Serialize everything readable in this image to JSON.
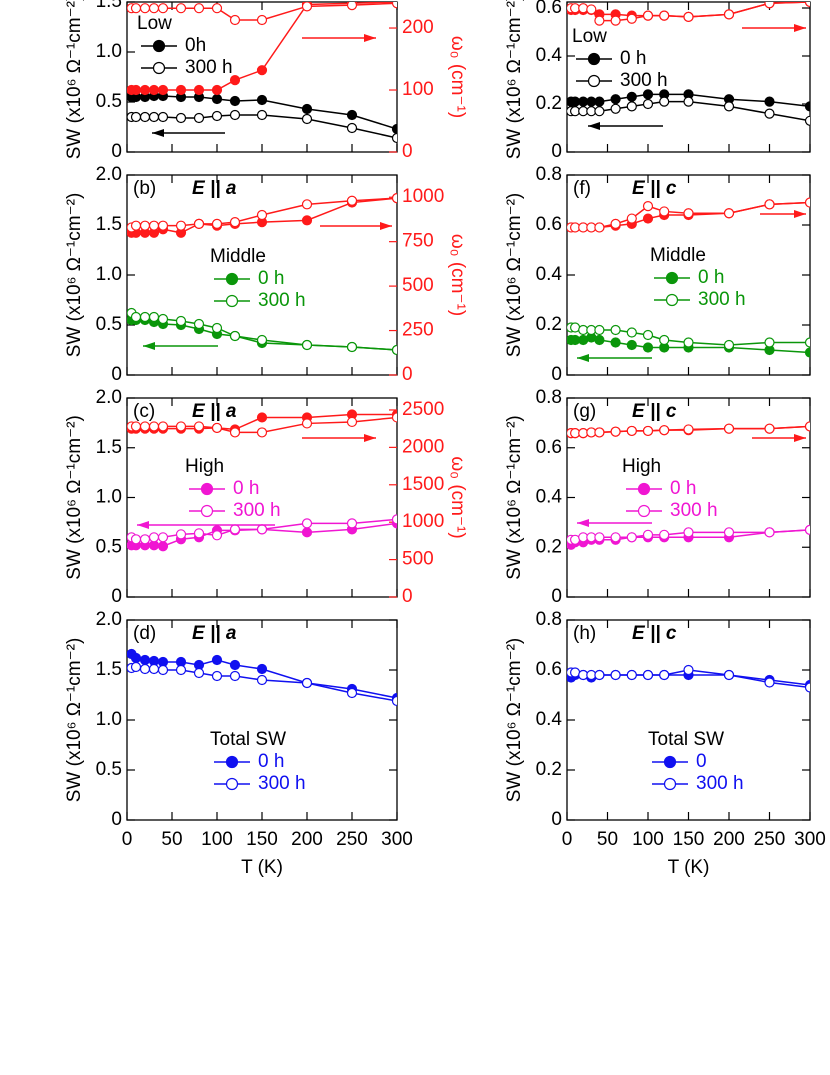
{
  "chart_data": [
    {
      "type": "line",
      "legend_title": "Low",
      "ylabel": "SW (x10⁶ Ω⁻¹cm⁻²)",
      "y2label": "ω₀ (cm⁻¹)",
      "x": [
        5,
        10,
        20,
        30,
        40,
        60,
        80,
        100,
        120,
        150,
        200,
        250,
        300
      ],
      "xlim": [
        0,
        300
      ],
      "xticks": [
        0,
        50,
        100,
        150,
        200,
        250,
        300
      ],
      "ylim": [
        0,
        1.5
      ],
      "yticks": [
        0,
        {
          "value": 0.5,
          "label": "0.5"
        },
        {
          "value": 1,
          "label": "1.0"
        },
        {
          "value": 1.5,
          "label": "1.5"
        }
      ],
      "y2lim": [
        0,
        242
      ],
      "y2ticks": [
        0,
        100,
        200
      ],
      "series": [
        {
          "name": "0h",
          "color": "#000000",
          "filled": true,
          "axis": "y",
          "values": [
            0.55,
            0.55,
            0.55,
            0.56,
            0.56,
            0.55,
            0.55,
            0.53,
            0.51,
            0.52,
            0.43,
            0.37,
            0.23
          ]
        },
        {
          "name": "300 h",
          "color": "#000000",
          "filled": false,
          "axis": "y",
          "values": [
            0.35,
            0.35,
            0.35,
            0.35,
            0.35,
            0.34,
            0.34,
            0.36,
            0.37,
            0.37,
            0.33,
            0.24,
            0.14
          ]
        },
        {
          "color": "#ff1a1a",
          "filled": true,
          "axis": "y2",
          "values": [
            100,
            100,
            100,
            100,
            100,
            100,
            100,
            100,
            116,
            132,
            238,
            240,
            242
          ]
        },
        {
          "color": "#ff1a1a",
          "filled": false,
          "axis": "y2",
          "values": [
            232,
            232,
            232,
            232,
            232,
            232,
            232,
            232,
            213,
            213,
            235,
            237,
            240
          ]
        }
      ]
    },
    {
      "type": "line",
      "tag": "(b)",
      "field": "E || a",
      "legend_title": "Middle",
      "ylabel": "SW (x10⁶ Ω⁻¹cm⁻²)",
      "y2label": "ω₀ (cm⁻¹)",
      "x": [
        5,
        10,
        20,
        30,
        40,
        60,
        80,
        100,
        120,
        150,
        200,
        250,
        300
      ],
      "xlim": [
        0,
        300
      ],
      "xticks": [
        0,
        50,
        100,
        150,
        200,
        250,
        300
      ],
      "ylim": [
        0,
        2
      ],
      "yticks": [
        0,
        {
          "value": 0.5,
          "label": "0.5"
        },
        {
          "value": 1,
          "label": "1.0"
        },
        {
          "value": 1.5,
          "label": "1.5"
        },
        {
          "value": 2,
          "label": "2.0"
        }
      ],
      "y2lim": [
        0,
        1125
      ],
      "y2ticks": [
        0,
        250,
        500,
        750,
        1000
      ],
      "series": [
        {
          "name": "0 h",
          "color": "#0a960a",
          "filled": true,
          "axis": "y",
          "values": [
            0.55,
            0.55,
            0.55,
            0.53,
            0.51,
            0.5,
            0.46,
            0.41,
            0.39,
            0.32,
            0.3,
            0.28,
            0.25
          ]
        },
        {
          "name": "300 h",
          "color": "#0a960a",
          "filled": false,
          "axis": "y",
          "values": [
            0.62,
            0.58,
            0.58,
            0.58,
            0.56,
            0.54,
            0.51,
            0.47,
            0.39,
            0.35,
            0.3,
            0.28,
            0.25
          ]
        },
        {
          "color": "#ff1a1a",
          "filled": true,
          "axis": "y2",
          "values": [
            800,
            800,
            800,
            800,
            820,
            800,
            850,
            840,
            850,
            860,
            870,
            970,
            995
          ]
        },
        {
          "color": "#ff1a1a",
          "filled": false,
          "axis": "y2",
          "values": [
            830,
            840,
            840,
            840,
            840,
            840,
            850,
            850,
            860,
            900,
            960,
            980,
            995
          ]
        }
      ]
    },
    {
      "type": "line",
      "tag": "(c)",
      "field": "E || a",
      "legend_title": "High",
      "ylabel": "SW (x10⁶ Ω⁻¹cm⁻²)",
      "y2label": "ω₀ (cm⁻¹)",
      "x": [
        5,
        10,
        20,
        30,
        40,
        60,
        80,
        100,
        120,
        150,
        200,
        250,
        300
      ],
      "xlim": [
        0,
        300
      ],
      "xticks": [
        0,
        50,
        100,
        150,
        200,
        250,
        300
      ],
      "ylim": [
        0,
        2
      ],
      "yticks": [
        0,
        {
          "value": 0.5,
          "label": "0.5"
        },
        {
          "value": 1,
          "label": "1.0"
        },
        {
          "value": 1.5,
          "label": "1.5"
        },
        {
          "value": 2,
          "label": "2.0"
        }
      ],
      "y2lim": [
        0,
        2660
      ],
      "y2ticks": [
        0,
        500,
        1000,
        1500,
        2000,
        2500
      ],
      "series": [
        {
          "name": "0 h",
          "color": "#f016d2",
          "filled": true,
          "axis": "y",
          "values": [
            0.52,
            0.52,
            0.52,
            0.52,
            0.51,
            0.58,
            0.6,
            0.67,
            0.67,
            0.68,
            0.65,
            0.68,
            0.74
          ]
        },
        {
          "name": "300 h",
          "color": "#f016d2",
          "filled": false,
          "axis": "y",
          "values": [
            0.6,
            0.58,
            0.58,
            0.6,
            0.6,
            0.63,
            0.64,
            0.62,
            0.68,
            0.68,
            0.74,
            0.74,
            0.78
          ]
        },
        {
          "color": "#ff1a1a",
          "filled": true,
          "axis": "y2",
          "values": [
            2250,
            2250,
            2250,
            2250,
            2250,
            2250,
            2250,
            2260,
            2240,
            2400,
            2400,
            2440,
            2440
          ]
        },
        {
          "color": "#ff1a1a",
          "filled": false,
          "axis": "y2",
          "values": [
            2280,
            2280,
            2280,
            2280,
            2280,
            2280,
            2280,
            2260,
            2200,
            2200,
            2320,
            2340,
            2400
          ]
        }
      ]
    },
    {
      "type": "line",
      "tag": "(d)",
      "field": "E || a",
      "legend_title": "Total SW",
      "ylabel": "SW (x10⁶ Ω⁻¹cm⁻²)",
      "xlabel": "T (K)",
      "x": [
        5,
        10,
        20,
        30,
        40,
        60,
        80,
        100,
        120,
        150,
        200,
        250,
        300
      ],
      "xlim": [
        0,
        300
      ],
      "xticks": [
        0,
        50,
        100,
        150,
        200,
        250,
        300
      ],
      "ylim": [
        0,
        2
      ],
      "yticks": [
        0,
        {
          "value": 0.5,
          "label": "0.5"
        },
        {
          "value": 1,
          "label": "1.0"
        },
        {
          "value": 1.5,
          "label": "1.5"
        },
        {
          "value": 2,
          "label": "2.0"
        }
      ],
      "series": [
        {
          "name": "0 h",
          "color": "#1010f0",
          "filled": true,
          "axis": "y",
          "values": [
            1.66,
            1.62,
            1.6,
            1.59,
            1.58,
            1.58,
            1.55,
            1.6,
            1.55,
            1.51,
            1.37,
            1.31,
            1.22
          ]
        },
        {
          "name": "300 h",
          "color": "#1010f0",
          "filled": false,
          "axis": "y",
          "values": [
            1.52,
            1.53,
            1.51,
            1.51,
            1.5,
            1.5,
            1.47,
            1.44,
            1.44,
            1.4,
            1.37,
            1.27,
            1.19
          ]
        }
      ]
    },
    {
      "type": "line",
      "legend_title": "Low",
      "ylabel": "SW (x10⁶ Ω⁻¹cm⁻²)",
      "x": [
        5,
        10,
        20,
        30,
        40,
        60,
        80,
        100,
        120,
        150,
        200,
        250,
        300
      ],
      "xlim": [
        0,
        300
      ],
      "xticks": [
        0,
        50,
        100,
        150,
        200,
        250,
        300
      ],
      "ylim": [
        0,
        0.625
      ],
      "yticks": [
        0,
        0.2,
        0.4,
        0.6
      ],
      "y2lim": [
        0,
        242
      ],
      "series": [
        {
          "name": "0 h",
          "color": "#000000",
          "filled": true,
          "axis": "y",
          "values": [
            0.21,
            0.21,
            0.21,
            0.21,
            0.21,
            0.22,
            0.23,
            0.24,
            0.24,
            0.24,
            0.22,
            0.21,
            0.19
          ]
        },
        {
          "name": "300 h",
          "color": "#000000",
          "filled": false,
          "axis": "y",
          "values": [
            0.17,
            0.17,
            0.17,
            0.17,
            0.17,
            0.18,
            0.19,
            0.2,
            0.21,
            0.21,
            0.19,
            0.16,
            0.13
          ]
        },
        {
          "color": "#ff1a1a",
          "filled": true,
          "axis": "y2",
          "values": [
            229,
            229,
            229,
            229,
            222,
            222,
            220,
            220,
            220,
            218,
            222,
            240,
            242
          ]
        },
        {
          "color": "#ff1a1a",
          "filled": false,
          "axis": "y2",
          "values": [
            232,
            232,
            232,
            230,
            212,
            212,
            215,
            220,
            220,
            218,
            222,
            240,
            242
          ]
        }
      ]
    },
    {
      "type": "line",
      "tag": "(f)",
      "field": "E || c",
      "legend_title": "Middle",
      "ylabel": "SW (x10⁶ Ω⁻¹cm⁻²)",
      "x": [
        5,
        10,
        20,
        30,
        40,
        60,
        80,
        100,
        120,
        150,
        200,
        250,
        300
      ],
      "xlim": [
        0,
        300
      ],
      "xticks": [
        0,
        50,
        100,
        150,
        200,
        250,
        300
      ],
      "ylim": [
        0,
        0.8
      ],
      "yticks": [
        0,
        0.2,
        0.4,
        0.6,
        0.8
      ],
      "y2lim": [
        0,
        1125
      ],
      "series": [
        {
          "name": "0 h",
          "color": "#0a960a",
          "filled": true,
          "axis": "y",
          "values": [
            0.14,
            0.14,
            0.14,
            0.15,
            0.14,
            0.13,
            0.12,
            0.11,
            0.11,
            0.11,
            0.11,
            0.1,
            0.09
          ]
        },
        {
          "name": "300 h",
          "color": "#0a960a",
          "filled": false,
          "axis": "y",
          "values": [
            0.19,
            0.19,
            0.18,
            0.18,
            0.18,
            0.18,
            0.17,
            0.16,
            0.14,
            0.13,
            0.12,
            0.13,
            0.13
          ]
        },
        {
          "color": "#ff1a1a",
          "filled": true,
          "axis": "y2",
          "values": [
            830,
            830,
            830,
            830,
            830,
            840,
            850,
            880,
            900,
            900,
            910,
            960,
            970
          ]
        },
        {
          "color": "#ff1a1a",
          "filled": false,
          "axis": "y2",
          "values": [
            830,
            830,
            830,
            830,
            830,
            850,
            880,
            950,
            920,
            910,
            910,
            960,
            970
          ]
        }
      ]
    },
    {
      "type": "line",
      "tag": "(g)",
      "field": "E || c",
      "legend_title": "High",
      "ylabel": "SW (x10⁶ Ω⁻¹cm⁻²)",
      "x": [
        5,
        10,
        20,
        30,
        40,
        60,
        80,
        100,
        120,
        150,
        200,
        250,
        300
      ],
      "xlim": [
        0,
        300
      ],
      "xticks": [
        0,
        50,
        100,
        150,
        200,
        250,
        300
      ],
      "ylim": [
        0,
        0.8
      ],
      "yticks": [
        0,
        0.2,
        0.4,
        0.6,
        0.8
      ],
      "y2lim": [
        0,
        2660
      ],
      "series": [
        {
          "name": "0 h",
          "color": "#f016d2",
          "filled": true,
          "axis": "y",
          "values": [
            0.21,
            0.22,
            0.22,
            0.23,
            0.23,
            0.23,
            0.24,
            0.24,
            0.24,
            0.24,
            0.24,
            0.26,
            0.27
          ]
        },
        {
          "name": "300 h",
          "color": "#f016d2",
          "filled": false,
          "axis": "y",
          "values": [
            0.23,
            0.23,
            0.24,
            0.24,
            0.24,
            0.24,
            0.24,
            0.25,
            0.25,
            0.26,
            0.26,
            0.26,
            0.27
          ]
        },
        {
          "color": "#ff1a1a",
          "filled": true,
          "axis": "y2",
          "values": [
            2190,
            2190,
            2190,
            2200,
            2200,
            2210,
            2220,
            2220,
            2230,
            2230,
            2250,
            2250,
            2280
          ]
        },
        {
          "color": "#ff1a1a",
          "filled": false,
          "axis": "y2",
          "values": [
            2190,
            2190,
            2190,
            2200,
            2200,
            2210,
            2220,
            2220,
            2230,
            2240,
            2250,
            2250,
            2280
          ]
        }
      ]
    },
    {
      "type": "line",
      "tag": "(h)",
      "field": "E || c",
      "legend_title": "Total SW",
      "ylabel": "SW (x10⁶ Ω⁻¹cm⁻²)",
      "xlabel": "T (K)",
      "x": [
        5,
        10,
        20,
        30,
        40,
        60,
        80,
        100,
        120,
        150,
        200,
        250,
        300
      ],
      "xlim": [
        0,
        300
      ],
      "xticks": [
        0,
        50,
        100,
        150,
        200,
        250,
        300
      ],
      "ylim": [
        0,
        0.8
      ],
      "yticks": [
        0,
        0.2,
        0.4,
        0.6,
        0.8
      ],
      "series": [
        {
          "name": "0",
          "color": "#1010f0",
          "filled": true,
          "axis": "y",
          "values": [
            0.57,
            0.58,
            0.58,
            0.57,
            0.58,
            0.58,
            0.58,
            0.58,
            0.58,
            0.58,
            0.58,
            0.56,
            0.54
          ]
        },
        {
          "name": "300 h",
          "color": "#1010f0",
          "filled": false,
          "axis": "y",
          "values": [
            0.59,
            0.59,
            0.58,
            0.58,
            0.58,
            0.58,
            0.58,
            0.58,
            0.58,
            0.6,
            0.58,
            0.55,
            0.53
          ]
        }
      ]
    }
  ]
}
